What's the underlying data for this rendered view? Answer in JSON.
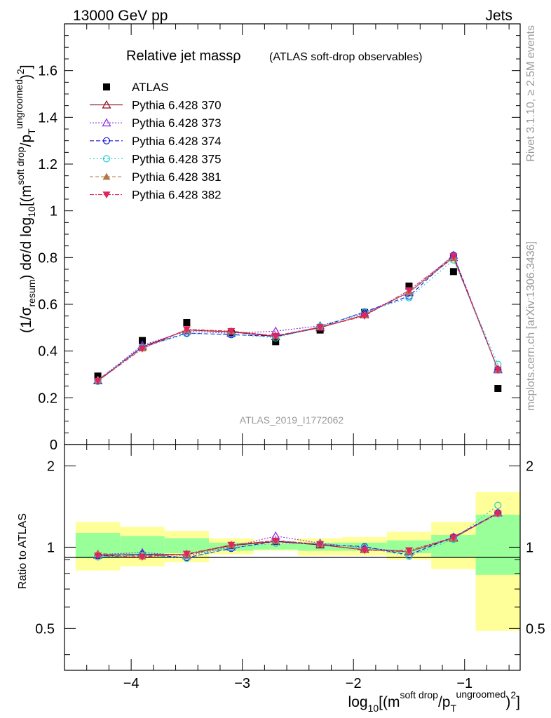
{
  "header": {
    "energy_label": "13000 GeV pp",
    "category_label": "Jets"
  },
  "side_labels": {
    "rivet": "Rivet 3.1.10, ≥ 2.5M events",
    "mcplots": "mcplots.cern.ch [arXiv:1306.3436]"
  },
  "colors": {
    "data": "#000000",
    "p370": "#8b0a1a",
    "p373": "#8a2be2",
    "p374": "#1515d6",
    "p375": "#1ecfcf",
    "p381": "#b07a48",
    "p382": "#e0245e",
    "band_inner": "#99ff99",
    "band_outer": "#ffff99"
  },
  "chart_data": [
    {
      "type": "line",
      "panel": "main",
      "title": "Relative jet massρ",
      "subtitle": "(ATLAS soft-drop observables)",
      "watermark": "ATLAS_2019_I1772062",
      "ylabel": "(1/σresum) dσ/d log10[(m^soft drop/pT^ungroomed)^2]",
      "xlim": [
        -4.6,
        -0.5
      ],
      "ylim": [
        0,
        1.8
      ],
      "yticks": [
        "0",
        "0.2",
        "0.4",
        "0.6",
        "0.8",
        "1",
        "1.2",
        "1.4",
        "1.6"
      ],
      "grid": false,
      "legend_position": "top-left",
      "x": [
        -4.3,
        -3.9,
        -3.5,
        -3.1,
        -2.7,
        -2.3,
        -1.9,
        -1.5,
        -1.1,
        -0.7
      ],
      "series": [
        {
          "name": "ATLAS",
          "key": "data",
          "marker": "square",
          "values": [
            0.293,
            0.445,
            0.522,
            0.475,
            0.44,
            0.49,
            0.565,
            0.678,
            0.74,
            0.24
          ]
        },
        {
          "name": "Pythia 6.428 370",
          "key": "p370",
          "marker": "triangle-up-open",
          "dash": "",
          "values": [
            0.273,
            0.418,
            0.49,
            0.482,
            0.462,
            0.5,
            0.555,
            0.652,
            0.8,
            0.322
          ]
        },
        {
          "name": "Pythia 6.428 373",
          "key": "p373",
          "marker": "triangle-up-open",
          "dash": "2,2",
          "values": [
            0.275,
            0.425,
            0.485,
            0.476,
            0.485,
            0.508,
            0.562,
            0.65,
            0.81,
            0.32
          ]
        },
        {
          "name": "Pythia 6.428 374",
          "key": "p374",
          "marker": "circle-open",
          "dash": "6,3",
          "values": [
            0.272,
            0.418,
            0.477,
            0.47,
            0.463,
            0.502,
            0.568,
            0.635,
            0.81,
            0.32
          ]
        },
        {
          "name": "Pythia 6.428 375",
          "key": "p375",
          "marker": "circle-open",
          "dash": "2,3",
          "values": [
            0.27,
            0.416,
            0.474,
            0.473,
            0.456,
            0.505,
            0.566,
            0.628,
            0.79,
            0.343
          ]
        },
        {
          "name": "Pythia 6.428 381",
          "key": "p381",
          "marker": "triangle-up",
          "dash": "5,3",
          "values": [
            0.278,
            0.412,
            0.49,
            0.485,
            0.466,
            0.503,
            0.553,
            0.653,
            0.8,
            0.32
          ]
        },
        {
          "name": "Pythia 6.428 382",
          "key": "p382",
          "marker": "triangle-down",
          "dash": "6,2,2,2",
          "values": [
            0.272,
            0.41,
            0.493,
            0.485,
            0.465,
            0.502,
            0.55,
            0.66,
            0.805,
            0.32
          ]
        }
      ]
    },
    {
      "type": "line",
      "panel": "ratio",
      "ylabel": "Ratio to ATLAS",
      "xlabel": "log10[(m^soft drop/pT^ungroomed)^2]",
      "xlim": [
        -4.6,
        -0.5
      ],
      "ylim": [
        0.35,
        2.4
      ],
      "yscale": "log",
      "yticks": [
        "0.5",
        "1",
        "2"
      ],
      "xticks": [
        "−4",
        "−3",
        "−2",
        "−1"
      ],
      "grid": false,
      "bins": [
        [
          -4.5,
          -4.1
        ],
        [
          -4.1,
          -3.7
        ],
        [
          -3.7,
          -3.3
        ],
        [
          -3.3,
          -2.9
        ],
        [
          -2.9,
          -2.5
        ],
        [
          -2.5,
          -2.1
        ],
        [
          -2.1,
          -1.7
        ],
        [
          -1.7,
          -1.3
        ],
        [
          -1.3,
          -0.9
        ],
        [
          -0.9,
          -0.5
        ]
      ],
      "band_inner": [
        [
          0.91,
          1.13
        ],
        [
          0.93,
          1.1
        ],
        [
          0.95,
          1.08
        ],
        [
          0.97,
          1.04
        ],
        [
          0.98,
          1.03
        ],
        [
          0.97,
          1.04
        ],
        [
          0.97,
          1.04
        ],
        [
          0.95,
          1.06
        ],
        [
          0.92,
          1.11
        ],
        [
          0.79,
          1.32
        ]
      ],
      "band_outer": [
        [
          0.82,
          1.24
        ],
        [
          0.85,
          1.19
        ],
        [
          0.88,
          1.15
        ],
        [
          0.94,
          1.08
        ],
        [
          0.97,
          1.05
        ],
        [
          0.93,
          1.08
        ],
        [
          0.93,
          1.09
        ],
        [
          0.9,
          1.14
        ],
        [
          0.83,
          1.24
        ],
        [
          0.49,
          1.6
        ]
      ],
      "x": [
        -4.3,
        -3.9,
        -3.5,
        -3.1,
        -2.7,
        -2.3,
        -1.9,
        -1.5,
        -1.1,
        -0.7
      ],
      "series": [
        {
          "name": "Pythia 6.428 370",
          "key": "p370",
          "marker": "triangle-up-open",
          "dash": "",
          "values": [
            0.935,
            0.94,
            0.94,
            1.015,
            1.05,
            1.02,
            0.98,
            0.962,
            1.08,
            1.34
          ]
        },
        {
          "name": "Pythia 6.428 373",
          "key": "p373",
          "marker": "triangle-up-open",
          "dash": "2,2",
          "values": [
            0.94,
            0.955,
            0.93,
            1.002,
            1.1,
            1.035,
            0.995,
            0.96,
            1.09,
            1.34
          ]
        },
        {
          "name": "Pythia 6.428 374",
          "key": "p374",
          "marker": "circle-open",
          "dash": "6,3",
          "values": [
            0.93,
            0.94,
            0.915,
            0.99,
            1.052,
            1.024,
            1.005,
            0.936,
            1.09,
            1.34
          ]
        },
        {
          "name": "Pythia 6.428 375",
          "key": "p375",
          "marker": "circle-open",
          "dash": "2,3",
          "values": [
            0.92,
            0.935,
            0.91,
            0.995,
            1.035,
            1.03,
            1.0,
            0.926,
            1.07,
            1.43
          ]
        },
        {
          "name": "Pythia 6.428 381",
          "key": "p381",
          "marker": "triangle-up",
          "dash": "5,3",
          "values": [
            0.95,
            0.925,
            0.94,
            1.02,
            1.06,
            1.026,
            0.978,
            0.963,
            1.08,
            1.34
          ]
        },
        {
          "name": "Pythia 6.428 382",
          "key": "p382",
          "marker": "triangle-down",
          "dash": "6,2,2,2",
          "values": [
            0.93,
            0.92,
            0.945,
            1.02,
            1.057,
            1.025,
            0.974,
            0.973,
            1.085,
            1.33
          ]
        }
      ]
    }
  ]
}
